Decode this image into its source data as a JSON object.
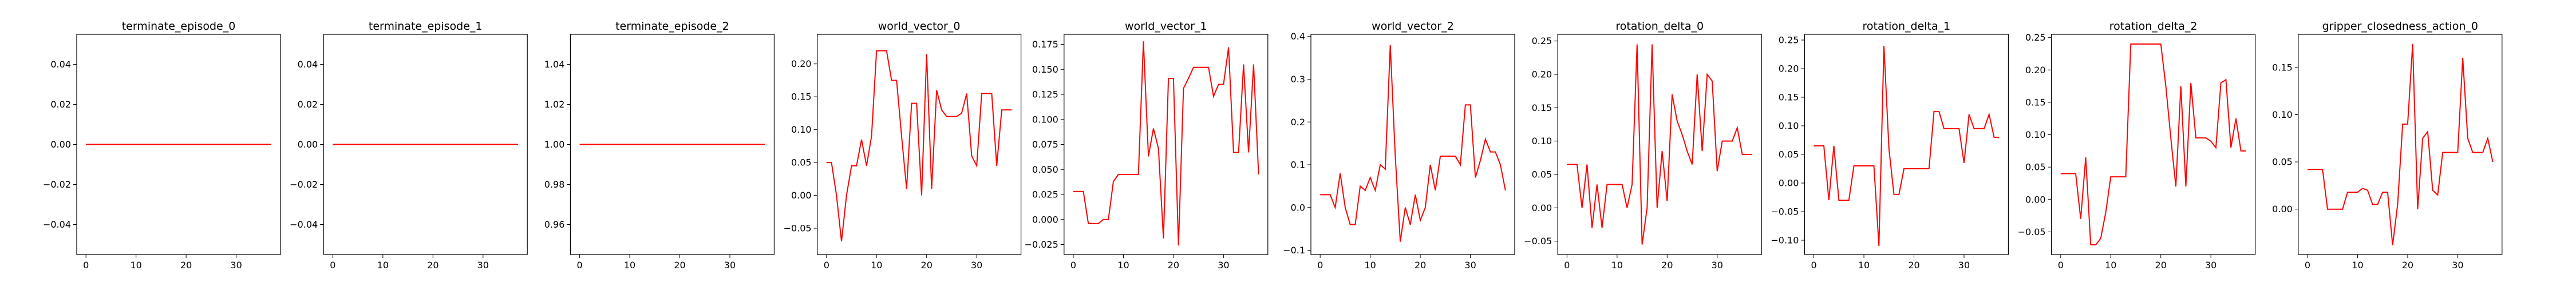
{
  "figure": {
    "line_color": "#ff0000"
  },
  "chart_data": [
    {
      "type": "line",
      "title": "terminate_episode_0",
      "x": [
        0,
        1,
        2,
        3,
        4,
        5,
        6,
        7,
        8,
        9,
        10,
        11,
        12,
        13,
        14,
        15,
        16,
        17,
        18,
        19,
        20,
        21,
        22,
        23,
        24,
        25,
        26,
        27,
        28,
        29,
        30,
        31,
        32,
        33,
        34,
        35,
        36,
        37
      ],
      "series": [
        {
          "values": [
            0,
            0,
            0,
            0,
            0,
            0,
            0,
            0,
            0,
            0,
            0,
            0,
            0,
            0,
            0,
            0,
            0,
            0,
            0,
            0,
            0,
            0,
            0,
            0,
            0,
            0,
            0,
            0,
            0,
            0,
            0,
            0,
            0,
            0,
            0,
            0,
            0,
            0
          ]
        }
      ],
      "xlim": [
        -1.85,
        38.85
      ],
      "ylim": [
        -0.055,
        0.055
      ],
      "xticks": [
        0,
        10,
        20,
        30
      ],
      "xtick_labels": [
        "0",
        "10",
        "20",
        "30"
      ],
      "yticks": [
        -0.04,
        -0.02,
        0.0,
        0.02,
        0.04
      ],
      "ytick_labels": [
        "−0.04",
        "−0.02",
        "0.00",
        "0.02",
        "0.04"
      ]
    },
    {
      "type": "line",
      "title": "terminate_episode_1",
      "x": [
        0,
        1,
        2,
        3,
        4,
        5,
        6,
        7,
        8,
        9,
        10,
        11,
        12,
        13,
        14,
        15,
        16,
        17,
        18,
        19,
        20,
        21,
        22,
        23,
        24,
        25,
        26,
        27,
        28,
        29,
        30,
        31,
        32,
        33,
        34,
        35,
        36,
        37
      ],
      "series": [
        {
          "values": [
            0,
            0,
            0,
            0,
            0,
            0,
            0,
            0,
            0,
            0,
            0,
            0,
            0,
            0,
            0,
            0,
            0,
            0,
            0,
            0,
            0,
            0,
            0,
            0,
            0,
            0,
            0,
            0,
            0,
            0,
            0,
            0,
            0,
            0,
            0,
            0,
            0,
            0
          ]
        }
      ],
      "xlim": [
        -1.85,
        38.85
      ],
      "ylim": [
        -0.055,
        0.055
      ],
      "xticks": [
        0,
        10,
        20,
        30
      ],
      "xtick_labels": [
        "0",
        "10",
        "20",
        "30"
      ],
      "yticks": [
        -0.04,
        -0.02,
        0.0,
        0.02,
        0.04
      ],
      "ytick_labels": [
        "−0.04",
        "−0.02",
        "0.00",
        "0.02",
        "0.04"
      ]
    },
    {
      "type": "line",
      "title": "terminate_episode_2",
      "x": [
        0,
        1,
        2,
        3,
        4,
        5,
        6,
        7,
        8,
        9,
        10,
        11,
        12,
        13,
        14,
        15,
        16,
        17,
        18,
        19,
        20,
        21,
        22,
        23,
        24,
        25,
        26,
        27,
        28,
        29,
        30,
        31,
        32,
        33,
        34,
        35,
        36,
        37
      ],
      "series": [
        {
          "values": [
            1,
            1,
            1,
            1,
            1,
            1,
            1,
            1,
            1,
            1,
            1,
            1,
            1,
            1,
            1,
            1,
            1,
            1,
            1,
            1,
            1,
            1,
            1,
            1,
            1,
            1,
            1,
            1,
            1,
            1,
            1,
            1,
            1,
            1,
            1,
            1,
            1,
            1
          ]
        }
      ],
      "xlim": [
        -1.85,
        38.85
      ],
      "ylim": [
        0.945,
        1.055
      ],
      "xticks": [
        0,
        10,
        20,
        30
      ],
      "xtick_labels": [
        "0",
        "10",
        "20",
        "30"
      ],
      "yticks": [
        0.96,
        0.98,
        1.0,
        1.02,
        1.04
      ],
      "ytick_labels": [
        "0.96",
        "0.98",
        "1.00",
        "1.02",
        "1.04"
      ]
    },
    {
      "type": "line",
      "title": "world_vector_0",
      "x": [
        0,
        1,
        2,
        3,
        4,
        5,
        6,
        7,
        8,
        9,
        10,
        11,
        12,
        13,
        14,
        15,
        16,
        17,
        18,
        19,
        20,
        21,
        22,
        23,
        24,
        25,
        26,
        27,
        28,
        29,
        30,
        31,
        32,
        33,
        34,
        35,
        36,
        37
      ],
      "series": [
        {
          "values": [
            0.05,
            0.05,
            0.0,
            -0.07,
            0.0,
            0.045,
            0.045,
            0.085,
            0.045,
            0.09,
            0.22,
            0.22,
            0.22,
            0.175,
            0.175,
            0.09,
            0.01,
            0.14,
            0.14,
            0.0,
            0.215,
            0.01,
            0.16,
            0.13,
            0.12,
            0.12,
            0.12,
            0.125,
            0.155,
            0.06,
            0.045,
            0.155,
            0.155,
            0.155,
            0.045,
            0.13,
            0.13,
            0.13
          ]
        }
      ],
      "xlim": [
        -1.85,
        38.85
      ],
      "ylim": [
        -0.09,
        0.245
      ],
      "xticks": [
        0,
        10,
        20,
        30
      ],
      "xtick_labels": [
        "0",
        "10",
        "20",
        "30"
      ],
      "yticks": [
        -0.05,
        0.0,
        0.05,
        0.1,
        0.15,
        0.2
      ],
      "ytick_labels": [
        "−0.05",
        "0.00",
        "0.05",
        "0.10",
        "0.15",
        "0.20"
      ]
    },
    {
      "type": "line",
      "title": "world_vector_1",
      "x": [
        0,
        1,
        2,
        3,
        4,
        5,
        6,
        7,
        8,
        9,
        10,
        11,
        12,
        13,
        14,
        15,
        16,
        17,
        18,
        19,
        20,
        21,
        22,
        23,
        24,
        25,
        26,
        27,
        28,
        29,
        30,
        31,
        32,
        33,
        34,
        35,
        36,
        37
      ],
      "series": [
        {
          "values": [
            0.028,
            0.028,
            0.028,
            -0.004,
            -0.004,
            -0.004,
            0.0,
            0.0,
            0.038,
            0.045,
            0.045,
            0.045,
            0.045,
            0.045,
            0.178,
            0.063,
            0.091,
            0.071,
            -0.019,
            0.141,
            0.141,
            -0.026,
            0.131,
            0.141,
            0.152,
            0.152,
            0.152,
            0.152,
            0.123,
            0.135,
            0.135,
            0.172,
            0.067,
            0.067,
            0.155,
            0.067,
            0.155,
            0.045
          ]
        }
      ],
      "xlim": [
        -1.85,
        38.85
      ],
      "ylim": [
        -0.035,
        0.185
      ],
      "xticks": [
        0,
        10,
        20,
        30
      ],
      "xtick_labels": [
        "0",
        "10",
        "20",
        "30"
      ],
      "yticks": [
        -0.025,
        0.0,
        0.025,
        0.05,
        0.075,
        0.1,
        0.125,
        0.15,
        0.175
      ],
      "ytick_labels": [
        "−0.025",
        "0.000",
        "0.025",
        "0.050",
        "0.075",
        "0.100",
        "0.125",
        "0.150",
        "0.175"
      ]
    },
    {
      "type": "line",
      "title": "world_vector_2",
      "x": [
        0,
        1,
        2,
        3,
        4,
        5,
        6,
        7,
        8,
        9,
        10,
        11,
        12,
        13,
        14,
        15,
        16,
        17,
        18,
        19,
        20,
        21,
        22,
        23,
        24,
        25,
        26,
        27,
        28,
        29,
        30,
        31,
        32,
        33,
        34,
        35,
        36,
        37
      ],
      "series": [
        {
          "values": [
            0.03,
            0.03,
            0.03,
            0.0,
            0.08,
            0.0,
            -0.04,
            -0.04,
            0.05,
            0.04,
            0.07,
            0.04,
            0.1,
            0.09,
            0.38,
            0.12,
            -0.08,
            0.0,
            -0.04,
            0.03,
            -0.03,
            0.0,
            0.1,
            0.04,
            0.12,
            0.12,
            0.12,
            0.12,
            0.1,
            0.24,
            0.24,
            0.07,
            0.11,
            0.16,
            0.13,
            0.13,
            0.1,
            0.04
          ]
        }
      ],
      "xlim": [
        -1.85,
        38.85
      ],
      "ylim": [
        -0.11,
        0.405
      ],
      "xticks": [
        0,
        10,
        20,
        30
      ],
      "xtick_labels": [
        "0",
        "10",
        "20",
        "30"
      ],
      "yticks": [
        -0.1,
        0.0,
        0.1,
        0.2,
        0.3,
        0.4
      ],
      "ytick_labels": [
        "−0.1",
        "0.0",
        "0.1",
        "0.2",
        "0.3",
        "0.4"
      ]
    },
    {
      "type": "line",
      "title": "rotation_delta_0",
      "x": [
        0,
        1,
        2,
        3,
        4,
        5,
        6,
        7,
        8,
        9,
        10,
        11,
        12,
        13,
        14,
        15,
        16,
        17,
        18,
        19,
        20,
        21,
        22,
        23,
        24,
        25,
        26,
        27,
        28,
        29,
        30,
        31,
        32,
        33,
        34,
        35,
        36,
        37
      ],
      "series": [
        {
          "values": [
            0.065,
            0.065,
            0.065,
            0.0,
            0.065,
            -0.03,
            0.035,
            -0.03,
            0.035,
            0.035,
            0.035,
            0.035,
            0.0,
            0.035,
            0.245,
            -0.055,
            0.0,
            0.245,
            0.0,
            0.085,
            0.01,
            0.17,
            0.13,
            0.11,
            0.085,
            0.065,
            0.2,
            0.085,
            0.2,
            0.19,
            0.055,
            0.1,
            0.1,
            0.1,
            0.12,
            0.08,
            0.08,
            0.08
          ]
        }
      ],
      "xlim": [
        -1.85,
        38.85
      ],
      "ylim": [
        -0.07,
        0.26
      ],
      "xticks": [
        0,
        10,
        20,
        30
      ],
      "xtick_labels": [
        "0",
        "10",
        "20",
        "30"
      ],
      "yticks": [
        -0.05,
        0.0,
        0.05,
        0.1,
        0.15,
        0.2,
        0.25
      ],
      "ytick_labels": [
        "−0.05",
        "0.00",
        "0.05",
        "0.10",
        "0.15",
        "0.20",
        "0.25"
      ]
    },
    {
      "type": "line",
      "title": "rotation_delta_1",
      "x": [
        0,
        1,
        2,
        3,
        4,
        5,
        6,
        7,
        8,
        9,
        10,
        11,
        12,
        13,
        14,
        15,
        16,
        17,
        18,
        19,
        20,
        21,
        22,
        23,
        24,
        25,
        26,
        27,
        28,
        29,
        30,
        31,
        32,
        33,
        34,
        35,
        36,
        37
      ],
      "series": [
        {
          "values": [
            0.065,
            0.065,
            0.065,
            -0.03,
            0.065,
            -0.03,
            -0.03,
            -0.03,
            0.03,
            0.03,
            0.03,
            0.03,
            0.03,
            -0.11,
            0.24,
            0.06,
            -0.02,
            -0.02,
            0.025,
            0.025,
            0.025,
            0.025,
            0.025,
            0.025,
            0.125,
            0.125,
            0.095,
            0.095,
            0.095,
            0.095,
            0.035,
            0.12,
            0.095,
            0.095,
            0.095,
            0.12,
            0.08,
            0.08
          ]
        }
      ],
      "xlim": [
        -1.85,
        38.85
      ],
      "ylim": [
        -0.125,
        0.26
      ],
      "xticks": [
        0,
        10,
        20,
        30
      ],
      "xtick_labels": [
        "0",
        "10",
        "20",
        "30"
      ],
      "yticks": [
        -0.1,
        -0.05,
        0.0,
        0.05,
        0.1,
        0.15,
        0.2,
        0.25
      ],
      "ytick_labels": [
        "−0.10",
        "−0.05",
        "0.00",
        "0.05",
        "0.10",
        "0.15",
        "0.20",
        "0.25"
      ]
    },
    {
      "type": "line",
      "title": "rotation_delta_2",
      "x": [
        0,
        1,
        2,
        3,
        4,
        5,
        6,
        7,
        8,
        9,
        10,
        11,
        12,
        13,
        14,
        15,
        16,
        17,
        18,
        19,
        20,
        21,
        22,
        23,
        24,
        25,
        26,
        27,
        28,
        29,
        30,
        31,
        32,
        33,
        34,
        35,
        36,
        37
      ],
      "series": [
        {
          "values": [
            0.04,
            0.04,
            0.04,
            0.04,
            -0.03,
            0.065,
            -0.07,
            -0.07,
            -0.06,
            -0.02,
            0.035,
            0.035,
            0.035,
            0.035,
            0.24,
            0.24,
            0.24,
            0.24,
            0.24,
            0.24,
            0.24,
            0.175,
            0.095,
            0.02,
            0.175,
            0.02,
            0.18,
            0.095,
            0.095,
            0.095,
            0.09,
            0.08,
            0.18,
            0.185,
            0.08,
            0.125,
            0.075,
            0.075
          ]
        }
      ],
      "xlim": [
        -1.85,
        38.85
      ],
      "ylim": [
        -0.085,
        0.255
      ],
      "xticks": [
        0,
        10,
        20,
        30
      ],
      "xtick_labels": [
        "0",
        "10",
        "20",
        "30"
      ],
      "yticks": [
        -0.05,
        0.0,
        0.05,
        0.1,
        0.15,
        0.2,
        0.25
      ],
      "ytick_labels": [
        "−0.05",
        "0.00",
        "0.05",
        "0.10",
        "0.15",
        "0.20",
        "0.25"
      ]
    },
    {
      "type": "line",
      "title": "gripper_closedness_action_0",
      "x": [
        0,
        1,
        2,
        3,
        4,
        5,
        6,
        7,
        8,
        9,
        10,
        11,
        12,
        13,
        14,
        15,
        16,
        17,
        18,
        19,
        20,
        21,
        22,
        23,
        24,
        25,
        26,
        27,
        28,
        29,
        30,
        31,
        32,
        33,
        34,
        35,
        36,
        37
      ],
      "series": [
        {
          "values": [
            0.042,
            0.042,
            0.042,
            0.042,
            0.0,
            0.0,
            0.0,
            0.0,
            0.018,
            0.018,
            0.018,
            0.022,
            0.02,
            0.005,
            0.005,
            0.018,
            0.018,
            -0.038,
            0.005,
            0.09,
            0.09,
            0.175,
            0.0,
            0.075,
            0.082,
            0.02,
            0.015,
            0.06,
            0.06,
            0.06,
            0.06,
            0.16,
            0.075,
            0.06,
            0.06,
            0.06,
            0.075,
            0.05
          ]
        }
      ],
      "xlim": [
        -1.85,
        38.85
      ],
      "ylim": [
        -0.048,
        0.185
      ],
      "xticks": [
        0,
        10,
        20,
        30
      ],
      "xtick_labels": [
        "0",
        "10",
        "20",
        "30"
      ],
      "yticks": [
        0.0,
        0.05,
        0.1,
        0.15
      ],
      "ytick_labels": [
        "0.00",
        "0.05",
        "0.10",
        "0.15"
      ]
    }
  ]
}
